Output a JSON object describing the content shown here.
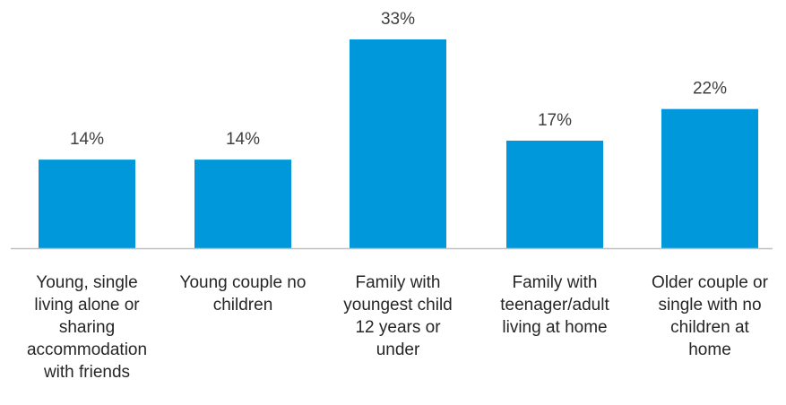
{
  "chart_data": {
    "type": "bar",
    "title": "",
    "xlabel": "",
    "ylabel": "",
    "categories": [
      "Young, single living alone or sharing accommodation with friends",
      "Young couple no children",
      "Family with youngest child 12 years or under",
      "Family with teenager/adult living at home",
      "Older couple or single with no children at home"
    ],
    "category_lines": [
      [
        "Young, single",
        "living alone or",
        "sharing",
        "accommodation",
        "with friends"
      ],
      [
        "Young couple no",
        "children"
      ],
      [
        "Family with",
        "youngest child",
        "12 years or",
        "under"
      ],
      [
        "Family with",
        "teenager/adult",
        "living at home"
      ],
      [
        "Older couple or",
        "single with no",
        "children at",
        "home"
      ]
    ],
    "values": [
      14,
      14,
      33,
      17,
      22
    ],
    "value_labels": [
      "14%",
      "14%",
      "33%",
      "17%",
      "22%"
    ],
    "ylim": [
      0,
      33
    ],
    "grid": false,
    "legend": "none",
    "bar_color": "#0098DB",
    "axis_color": "#BFBFBF"
  }
}
